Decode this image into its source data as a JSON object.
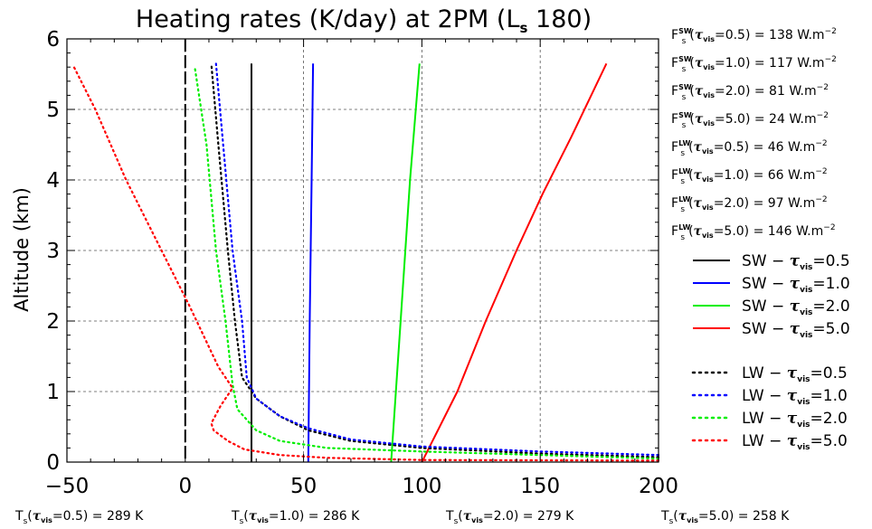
{
  "chart_data": {
    "type": "line",
    "title": {
      "main": "Heating rates (K/day) at 2PM (L",
      "sub": "s",
      "end": " 180)"
    },
    "xlabel": "",
    "ylabel": "Altitude (km)",
    "xlim": [
      -50,
      200
    ],
    "ylim": [
      0,
      6
    ],
    "xticks": [
      -50,
      0,
      50,
      100,
      150,
      200
    ],
    "yticks": [
      0,
      1,
      2,
      3,
      4,
      5,
      6
    ],
    "grid": true,
    "legend": "right",
    "series": [
      {
        "name": "SW - τvis=0.5",
        "label": {
          "pre": "SW  −  ",
          "tau": "τ",
          "sub": "vis",
          "post": "=0.5"
        },
        "color": "#000000",
        "style": "solid",
        "x": [
          28,
          28,
          28,
          28
        ],
        "y": [
          0,
          2,
          4,
          5.65
        ]
      },
      {
        "name": "SW - τvis=1.0",
        "label": {
          "pre": "SW  −  ",
          "tau": "τ",
          "sub": "vis",
          "post": "=1.0"
        },
        "color": "#0000ff",
        "style": "solid",
        "x": [
          52,
          52.6,
          53.4,
          54
        ],
        "y": [
          0,
          2,
          4,
          5.65
        ]
      },
      {
        "name": "SW - τvis=2.0",
        "label": {
          "pre": "SW  −  ",
          "tau": "τ",
          "sub": "vis",
          "post": "=2.0"
        },
        "color": "#00ee00",
        "style": "solid",
        "x": [
          87,
          91,
          95,
          99
        ],
        "y": [
          0,
          2,
          4,
          5.65
        ]
      },
      {
        "name": "SW - τvis=5.0",
        "label": {
          "pre": "SW  −  ",
          "tau": "τ",
          "sub": "vis",
          "post": "=5.0"
        },
        "color": "#ff0000",
        "style": "solid",
        "x": [
          100,
          115,
          127,
          140,
          151,
          163,
          178
        ],
        "y": [
          0,
          1,
          2,
          3,
          3.8,
          4.6,
          5.65
        ]
      },
      {
        "name": "LW - τvis=0.5",
        "label": {
          "pre": "LW  −  ",
          "tau": "τ",
          "sub": "vis",
          "post": "=0.5"
        },
        "color": "#000000",
        "style": "dotted",
        "x": [
          200,
          150,
          100,
          70,
          52,
          40,
          30,
          24,
          21,
          18,
          14,
          11
        ],
        "y": [
          0.07,
          0.12,
          0.2,
          0.3,
          0.45,
          0.65,
          0.9,
          1.2,
          2.0,
          3.0,
          4.5,
          5.65
        ]
      },
      {
        "name": "LW - τvis=1.0",
        "label": {
          "pre": "LW  −  ",
          "tau": "τ",
          "sub": "vis",
          "post": "=1.0"
        },
        "color": "#0000ff",
        "style": "dotted",
        "x": [
          200,
          150,
          100,
          70,
          52,
          40,
          30,
          26,
          24,
          20,
          16,
          13
        ],
        "y": [
          0.1,
          0.15,
          0.22,
          0.32,
          0.48,
          0.65,
          0.9,
          1.2,
          2.0,
          3.0,
          4.5,
          5.65
        ]
      },
      {
        "name": "LW - τvis=2.0",
        "label": {
          "pre": "LW  −  ",
          "tau": "τ",
          "sub": "vis",
          "post": "=2.0"
        },
        "color": "#00ee00",
        "style": "dotted",
        "x": [
          200,
          150,
          100,
          60,
          40,
          30,
          22,
          20,
          17,
          13,
          9,
          4
        ],
        "y": [
          0.05,
          0.1,
          0.15,
          0.2,
          0.3,
          0.45,
          0.75,
          1.1,
          2.0,
          3.0,
          4.5,
          5.6
        ]
      },
      {
        "name": "LW - τvis=5.0",
        "label": {
          "pre": "LW  −  ",
          "tau": "τ",
          "sub": "vis",
          "post": "=5.0"
        },
        "color": "#ff0000",
        "style": "dotted",
        "x": [
          200,
          100,
          60,
          40,
          25,
          18,
          12,
          11,
          15,
          20,
          14,
          2,
          -10,
          -25,
          -38,
          -47
        ],
        "y": [
          0.02,
          0.03,
          0.06,
          0.1,
          0.18,
          0.3,
          0.45,
          0.55,
          0.8,
          1.05,
          1.35,
          2.2,
          3.0,
          4.0,
          5.0,
          5.6
        ]
      }
    ],
    "flux_annotations": [
      {
        "pre": "F",
        "sub": "s",
        "sup": "SW",
        "tau": "τ",
        "tsub": "vis",
        "post": "=0.5)  =  138  W.m",
        "exp": "−2"
      },
      {
        "pre": "F",
        "sub": "s",
        "sup": "SW",
        "tau": "τ",
        "tsub": "vis",
        "post": "=1.0)  =  117  W.m",
        "exp": "−2"
      },
      {
        "pre": "F",
        "sub": "s",
        "sup": "SW",
        "tau": "τ",
        "tsub": "vis",
        "post": "=2.0)  =  81  W.m",
        "exp": "−2"
      },
      {
        "pre": "F",
        "sub": "s",
        "sup": "SW",
        "tau": "τ",
        "tsub": "vis",
        "post": "=5.0)  =  24  W.m",
        "exp": "−2"
      },
      {
        "pre": "F",
        "sub": "s",
        "sup": "LW",
        "tau": "τ",
        "tsub": "vis",
        "post": "=0.5)  =  46  W.m",
        "exp": "−2"
      },
      {
        "pre": "F",
        "sub": "s",
        "sup": "LW",
        "tau": "τ",
        "tsub": "vis",
        "post": "=1.0)  =  66  W.m",
        "exp": "−2"
      },
      {
        "pre": "F",
        "sub": "s",
        "sup": "LW",
        "tau": "τ",
        "tsub": "vis",
        "post": "=2.0)  =  97  W.m",
        "exp": "−2"
      },
      {
        "pre": "F",
        "sub": "s",
        "sup": "LW",
        "tau": "τ",
        "tsub": "vis",
        "post": "=5.0)  =  146  W.m",
        "exp": "−2"
      }
    ],
    "surface_temps": [
      {
        "pre": "T",
        "sub": "s",
        "tau": "τ",
        "tsub": "vis",
        "post": "=0.5)  =  289  K"
      },
      {
        "pre": "T",
        "sub": "s",
        "tau": "τ",
        "tsub": "vis",
        "post": "=1.0)  =  286  K"
      },
      {
        "pre": "T",
        "sub": "s",
        "tau": "τ",
        "tsub": "vis",
        "post": "=2.0)  =  279  K"
      },
      {
        "pre": "T",
        "sub": "s",
        "tau": "τ",
        "tsub": "vis",
        "post": "=5.0)  =  258  K"
      }
    ],
    "colors": {
      "black": "#000000",
      "blue": "#0000ff",
      "green": "#00ee00",
      "red": "#ff0000",
      "grid": "#555555"
    }
  }
}
